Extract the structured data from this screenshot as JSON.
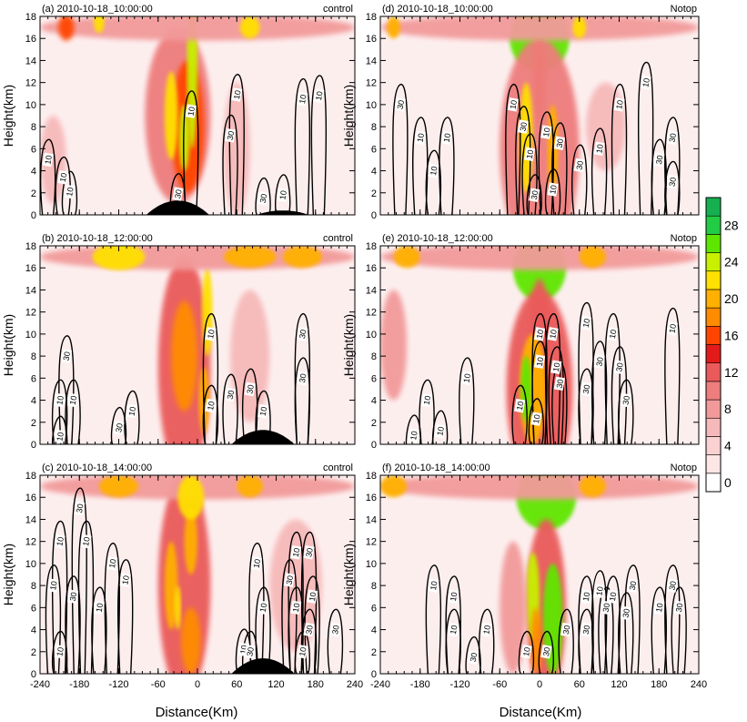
{
  "chart_data": {
    "type": "heatmap",
    "xlabel": "Distance(Km)",
    "ylabel": "Height(km)",
    "xlim": [
      -240,
      240
    ],
    "ylim": [
      0,
      18
    ],
    "x_ticks": [
      "-240",
      "-180",
      "-120",
      "-60",
      "0",
      "60",
      "120",
      "180",
      "240"
    ],
    "y_ticks": [
      "0",
      "2",
      "4",
      "6",
      "8",
      "10",
      "12",
      "14",
      "16",
      "18"
    ],
    "colorbar": {
      "labels": [
        "0",
        "4",
        "8",
        "12",
        "16",
        "20",
        "24",
        "28"
      ],
      "levels": [
        0,
        2,
        4,
        6,
        8,
        10,
        12,
        14,
        16,
        18,
        20,
        22,
        24,
        26,
        28,
        30
      ],
      "colors": [
        "#ffffff",
        "#fde6e6",
        "#fad2d2",
        "#f6b9b9",
        "#f29a9a",
        "#ee7d7d",
        "#ea5a5a",
        "#e31a1a",
        "#ff4500",
        "#ff8c00",
        "#ffb000",
        "#ffe000",
        "#c8f000",
        "#5ee600",
        "#22cc44",
        "#16b050"
      ]
    },
    "panels": [
      {
        "label": "(a) 2010-10-18_10:00:00",
        "case": "control",
        "terrain": [
          {
            "center": -30,
            "half_width": 48,
            "height": 1.3
          },
          {
            "center": 130,
            "half_width": 40,
            "height": 0.4
          }
        ],
        "shading_blobs": [
          {
            "x": -30,
            "y": 9,
            "w": 50,
            "h": 8,
            "v": 10
          },
          {
            "x": -15,
            "y": 8,
            "w": 25,
            "h": 6,
            "v": 16
          },
          {
            "x": -8,
            "y": 14,
            "w": 8,
            "h": 8,
            "v": 24
          },
          {
            "x": -40,
            "y": 9,
            "w": 10,
            "h": 4,
            "v": 22
          },
          {
            "x": -20,
            "y": 7,
            "w": 8,
            "h": 3,
            "v": 24
          },
          {
            "x": 0,
            "y": 17,
            "w": 240,
            "h": 1.2,
            "v": 8
          },
          {
            "x": -200,
            "y": 17,
            "w": 12,
            "h": 1.2,
            "v": 16
          },
          {
            "x": -150,
            "y": 17.5,
            "w": 8,
            "h": 1,
            "v": 22
          },
          {
            "x": 80,
            "y": 17,
            "w": 15,
            "h": 1,
            "v": 22
          },
          {
            "x": -220,
            "y": 5,
            "w": 20,
            "h": 4,
            "v": 6
          },
          {
            "x": 60,
            "y": 6,
            "w": 20,
            "h": 6,
            "v": 6
          }
        ],
        "contour_labels": [
          {
            "x": -30,
            "y": 1.9,
            "text": "30"
          },
          {
            "x": -10,
            "y": 9.4,
            "text": "10"
          },
          {
            "x": 50,
            "y": 7.2,
            "text": "30"
          },
          {
            "x": 60,
            "y": 10.9,
            "text": "10"
          },
          {
            "x": 160,
            "y": 10.5,
            "text": "10"
          },
          {
            "x": 185,
            "y": 10.8,
            "text": "10"
          },
          {
            "x": -228,
            "y": 5,
            "text": "10"
          },
          {
            "x": -205,
            "y": 3.4,
            "text": "10"
          },
          {
            "x": -195,
            "y": 2.1,
            "text": "10"
          },
          {
            "x": 100,
            "y": 1.5,
            "text": "30"
          },
          {
            "x": 130,
            "y": 1.8,
            "text": "10"
          }
        ]
      },
      {
        "label": "(d) 2010-10-18_10:00:00",
        "case": "Notop",
        "terrain": [],
        "shading_blobs": [
          {
            "x": 0,
            "y": 16,
            "w": 45,
            "h": 3,
            "v": 26
          },
          {
            "x": 0,
            "y": 12,
            "w": 10,
            "h": 4,
            "v": 16
          },
          {
            "x": 0,
            "y": 6,
            "w": 60,
            "h": 10,
            "v": 10
          },
          {
            "x": -20,
            "y": 7,
            "w": 10,
            "h": 5,
            "v": 22
          },
          {
            "x": 20,
            "y": 6,
            "w": 8,
            "h": 4,
            "v": 20
          },
          {
            "x": 0,
            "y": 17,
            "w": 240,
            "h": 1.2,
            "v": 8
          },
          {
            "x": 60,
            "y": 17,
            "w": 10,
            "h": 1,
            "v": 22
          },
          {
            "x": -220,
            "y": 17,
            "w": 10,
            "h": 1,
            "v": 20
          },
          {
            "x": 100,
            "y": 8,
            "w": 30,
            "h": 4,
            "v": 6
          }
        ],
        "contour_labels": [
          {
            "x": -40,
            "y": 10,
            "text": "10"
          },
          {
            "x": -25,
            "y": 8,
            "text": "30"
          },
          {
            "x": -15,
            "y": 5.5,
            "text": "10"
          },
          {
            "x": 10,
            "y": 7.5,
            "text": "10"
          },
          {
            "x": 30,
            "y": 6.5,
            "text": "30"
          },
          {
            "x": -8,
            "y": 1.8,
            "text": "30"
          },
          {
            "x": 20,
            "y": 2.3,
            "text": "10"
          },
          {
            "x": -210,
            "y": 10,
            "text": "30"
          },
          {
            "x": -180,
            "y": 7,
            "text": "10"
          },
          {
            "x": -160,
            "y": 4,
            "text": "10"
          },
          {
            "x": -140,
            "y": 7,
            "text": "10"
          },
          {
            "x": 60,
            "y": 4.5,
            "text": "30"
          },
          {
            "x": 90,
            "y": 6,
            "text": "10"
          },
          {
            "x": 120,
            "y": 10,
            "text": "10"
          },
          {
            "x": 160,
            "y": 12,
            "text": "10"
          },
          {
            "x": 200,
            "y": 7,
            "text": "30"
          },
          {
            "x": 180,
            "y": 5,
            "text": "30"
          },
          {
            "x": 200,
            "y": 3,
            "text": "30"
          }
        ]
      },
      {
        "label": "(b) 2010-10-18_12:00:00",
        "case": "control",
        "terrain": [
          {
            "center": 100,
            "half_width": 48,
            "height": 1.3
          }
        ],
        "shading_blobs": [
          {
            "x": -20,
            "y": 7,
            "w": 40,
            "h": 10,
            "v": 12
          },
          {
            "x": -20,
            "y": 8,
            "w": 20,
            "h": 5,
            "v": 18
          },
          {
            "x": 15,
            "y": 12,
            "w": 8,
            "h": 4,
            "v": 22
          },
          {
            "x": 10,
            "y": 4,
            "w": 8,
            "h": 3,
            "v": 20
          },
          {
            "x": 0,
            "y": 17,
            "w": 240,
            "h": 1.2,
            "v": 8
          },
          {
            "x": -120,
            "y": 17,
            "w": 40,
            "h": 1.2,
            "v": 22
          },
          {
            "x": 80,
            "y": 17,
            "w": 40,
            "h": 1,
            "v": 20
          },
          {
            "x": 160,
            "y": 17,
            "w": 30,
            "h": 1,
            "v": 20
          },
          {
            "x": 80,
            "y": 8,
            "w": 30,
            "h": 6,
            "v": 6
          }
        ],
        "contour_labels": [
          {
            "x": 20,
            "y": 10,
            "text": "10"
          },
          {
            "x": 20,
            "y": 3.5,
            "text": "10"
          },
          {
            "x": 50,
            "y": 4.5,
            "text": "30"
          },
          {
            "x": 80,
            "y": 5,
            "text": "30"
          },
          {
            "x": 160,
            "y": 10,
            "text": "30"
          },
          {
            "x": 160,
            "y": 6,
            "text": "30"
          },
          {
            "x": -120,
            "y": 1.5,
            "text": "30"
          },
          {
            "x": -100,
            "y": 3,
            "text": "10"
          },
          {
            "x": -200,
            "y": 8,
            "text": "30"
          },
          {
            "x": -210,
            "y": 4,
            "text": "10"
          },
          {
            "x": -190,
            "y": 4,
            "text": "10"
          },
          {
            "x": 100,
            "y": 3,
            "text": "10"
          },
          {
            "x": -210,
            "y": 0.7,
            "text": "10"
          }
        ]
      },
      {
        "label": "(e) 2010-10-18_12:00:00",
        "case": "Notop",
        "terrain": [],
        "shading_blobs": [
          {
            "x": 0,
            "y": 16,
            "w": 40,
            "h": 3,
            "v": 26
          },
          {
            "x": 0,
            "y": 10,
            "w": 15,
            "h": 5,
            "v": 12
          },
          {
            "x": 0,
            "y": 5,
            "w": 50,
            "h": 9,
            "v": 12
          },
          {
            "x": -10,
            "y": 5,
            "w": 20,
            "h": 5,
            "v": 20
          },
          {
            "x": -20,
            "y": 5,
            "w": 8,
            "h": 3,
            "v": 26
          },
          {
            "x": 0,
            "y": 17,
            "w": 240,
            "h": 1.2,
            "v": 8
          },
          {
            "x": -200,
            "y": 17,
            "w": 20,
            "h": 1,
            "v": 20
          },
          {
            "x": 80,
            "y": 17,
            "w": 20,
            "h": 1,
            "v": 20
          },
          {
            "x": -220,
            "y": 9,
            "w": 20,
            "h": 5,
            "v": 8
          }
        ],
        "contour_labels": [
          {
            "x": 0,
            "y": 10,
            "text": "10"
          },
          {
            "x": 20,
            "y": 10,
            "text": "10"
          },
          {
            "x": 0,
            "y": 7.5,
            "text": "10"
          },
          {
            "x": 25,
            "y": 7,
            "text": "10"
          },
          {
            "x": 30,
            "y": 5.5,
            "text": "30"
          },
          {
            "x": -30,
            "y": 3.5,
            "text": "10"
          },
          {
            "x": -5,
            "y": 2.3,
            "text": "10"
          },
          {
            "x": 70,
            "y": 11,
            "text": "10"
          },
          {
            "x": 110,
            "y": 10,
            "text": "10"
          },
          {
            "x": 120,
            "y": 7,
            "text": "30"
          },
          {
            "x": 90,
            "y": 7.5,
            "text": "30"
          },
          {
            "x": 70,
            "y": 5,
            "text": "30"
          },
          {
            "x": 130,
            "y": 4,
            "text": "30"
          },
          {
            "x": 200,
            "y": 10.5,
            "text": "10"
          },
          {
            "x": -110,
            "y": 6,
            "text": "10"
          },
          {
            "x": -170,
            "y": 4,
            "text": "10"
          },
          {
            "x": -150,
            "y": 1.2,
            "text": "10"
          },
          {
            "x": -190,
            "y": 0.8,
            "text": "10"
          }
        ]
      },
      {
        "label": "(c) 2010-10-18_14:00:00",
        "case": "control",
        "terrain": [
          {
            "center": 100,
            "half_width": 48,
            "height": 1.4
          }
        ],
        "shading_blobs": [
          {
            "x": -20,
            "y": 8,
            "w": 40,
            "h": 10,
            "v": 12
          },
          {
            "x": -40,
            "y": 8,
            "w": 10,
            "h": 4,
            "v": 20
          },
          {
            "x": -10,
            "y": 12,
            "w": 10,
            "h": 3,
            "v": 20
          },
          {
            "x": -10,
            "y": 3,
            "w": 15,
            "h": 3,
            "v": 18
          },
          {
            "x": -30,
            "y": 6,
            "w": 5,
            "h": 2,
            "v": 22
          },
          {
            "x": 0,
            "y": 17,
            "w": 240,
            "h": 1.2,
            "v": 8
          },
          {
            "x": -10,
            "y": 16,
            "w": 20,
            "h": 2,
            "v": 22
          },
          {
            "x": 80,
            "y": 17,
            "w": 20,
            "h": 1,
            "v": 20
          },
          {
            "x": -120,
            "y": 17,
            "w": 30,
            "h": 1,
            "v": 20
          },
          {
            "x": 150,
            "y": 8,
            "w": 40,
            "h": 6,
            "v": 6
          }
        ],
        "contour_labels": [
          {
            "x": -180,
            "y": 15,
            "text": "30"
          },
          {
            "x": -210,
            "y": 12,
            "text": "10"
          },
          {
            "x": -170,
            "y": 12,
            "text": "10"
          },
          {
            "x": -130,
            "y": 10,
            "text": "10"
          },
          {
            "x": -110,
            "y": 8.5,
            "text": "10"
          },
          {
            "x": -220,
            "y": 8,
            "text": "10"
          },
          {
            "x": -190,
            "y": 7,
            "text": "30"
          },
          {
            "x": -150,
            "y": 6,
            "text": "10"
          },
          {
            "x": -210,
            "y": 2,
            "text": "10"
          },
          {
            "x": 90,
            "y": 10,
            "text": "10"
          },
          {
            "x": 100,
            "y": 6,
            "text": "10"
          },
          {
            "x": 140,
            "y": 8.5,
            "text": "30"
          },
          {
            "x": 150,
            "y": 11,
            "text": "10"
          },
          {
            "x": 150,
            "y": 6,
            "text": "10"
          },
          {
            "x": 175,
            "y": 7,
            "text": "10"
          },
          {
            "x": 170,
            "y": 11,
            "text": "30"
          },
          {
            "x": 170,
            "y": 4,
            "text": "30"
          },
          {
            "x": 160,
            "y": 2,
            "text": "10"
          },
          {
            "x": 70,
            "y": 2.2,
            "text": "10"
          },
          {
            "x": 80,
            "y": 2,
            "text": "30"
          },
          {
            "x": 210,
            "y": 4,
            "text": "30"
          }
        ]
      },
      {
        "label": "(f) 2010-10-18_14:00:00",
        "case": "Notop",
        "terrain": [],
        "shading_blobs": [
          {
            "x": 10,
            "y": 16,
            "w": 45,
            "h": 3,
            "v": 26
          },
          {
            "x": 10,
            "y": 6,
            "w": 30,
            "h": 8,
            "v": 12
          },
          {
            "x": -10,
            "y": 7,
            "w": 10,
            "h": 4,
            "v": 24
          },
          {
            "x": 20,
            "y": 5,
            "w": 15,
            "h": 5,
            "v": 26
          },
          {
            "x": -5,
            "y": 3,
            "w": 8,
            "h": 3,
            "v": 18
          },
          {
            "x": 0,
            "y": 17,
            "w": 240,
            "h": 1.2,
            "v": 8
          },
          {
            "x": -220,
            "y": 17,
            "w": 20,
            "h": 1,
            "v": 20
          },
          {
            "x": 80,
            "y": 17,
            "w": 20,
            "h": 1,
            "v": 20
          },
          {
            "x": -40,
            "y": 6,
            "w": 20,
            "h": 6,
            "v": 8
          }
        ],
        "contour_labels": [
          {
            "x": 70,
            "y": 7,
            "text": "10"
          },
          {
            "x": 90,
            "y": 7.5,
            "text": "10"
          },
          {
            "x": 100,
            "y": 6,
            "text": "30"
          },
          {
            "x": 110,
            "y": 7,
            "text": "10"
          },
          {
            "x": 140,
            "y": 8,
            "text": "30"
          },
          {
            "x": 40,
            "y": 4,
            "text": "30"
          },
          {
            "x": 70,
            "y": 4,
            "text": "30"
          },
          {
            "x": 130,
            "y": 5.5,
            "text": "30"
          },
          {
            "x": 200,
            "y": 8,
            "text": "30"
          },
          {
            "x": 180,
            "y": 6,
            "text": "10"
          },
          {
            "x": 210,
            "y": 6,
            "text": "30"
          },
          {
            "x": -160,
            "y": 8,
            "text": "10"
          },
          {
            "x": -130,
            "y": 7,
            "text": "10"
          },
          {
            "x": -130,
            "y": 4,
            "text": "10"
          },
          {
            "x": -80,
            "y": 4,
            "text": "10"
          },
          {
            "x": -100,
            "y": 1.5,
            "text": "30"
          },
          {
            "x": -20,
            "y": 2,
            "text": "10"
          },
          {
            "x": 10,
            "y": 2,
            "text": "30"
          }
        ]
      }
    ]
  }
}
